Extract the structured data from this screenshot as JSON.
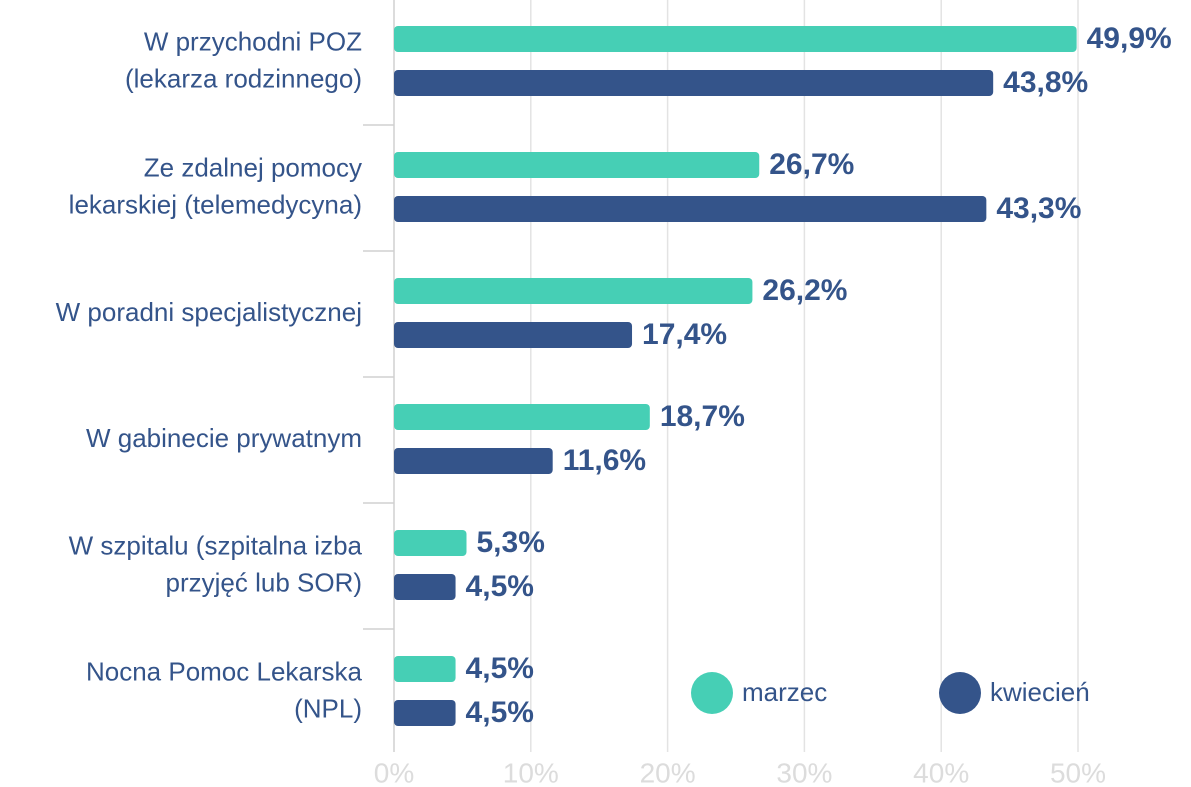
{
  "chart_data": {
    "type": "bar",
    "orientation": "horizontal",
    "categories": [
      "W przychodni POZ\n(lekarza rodzinnego)",
      "Ze zdalnej pomocy\nlekarskiej (telemedycyna)",
      "W poradni specjalistycznej",
      "W gabinecie prywatnym",
      "W szpitalu (szpitalna izba\nprzyjęć lub SOR)",
      "Nocna Pomoc Lekarska\n(NPL)"
    ],
    "series": [
      {
        "name": "marzec",
        "color": "#46cfb5",
        "values": [
          49.9,
          26.7,
          26.2,
          18.7,
          5.3,
          4.5
        ],
        "value_labels": [
          "49,9%",
          "26,7%",
          "26,2%",
          "18,7%",
          "5,3%",
          "4,5%"
        ]
      },
      {
        "name": "kwiecień",
        "color": "#34548a",
        "values": [
          43.8,
          43.3,
          17.4,
          11.6,
          4.5,
          4.5
        ],
        "value_labels": [
          "43,8%",
          "43,3%",
          "17,4%",
          "11,6%",
          "4,5%",
          "4,5%"
        ]
      }
    ],
    "xlim": [
      0,
      50
    ],
    "xticks": [
      {
        "value": 0,
        "label": "0%"
      },
      {
        "value": 10,
        "label": "10%"
      },
      {
        "value": 20,
        "label": "20%"
      },
      {
        "value": 30,
        "label": "30%"
      },
      {
        "value": 40,
        "label": "40%"
      },
      {
        "value": 50,
        "label": "50%"
      }
    ],
    "grid": true,
    "legend": "lower right"
  }
}
